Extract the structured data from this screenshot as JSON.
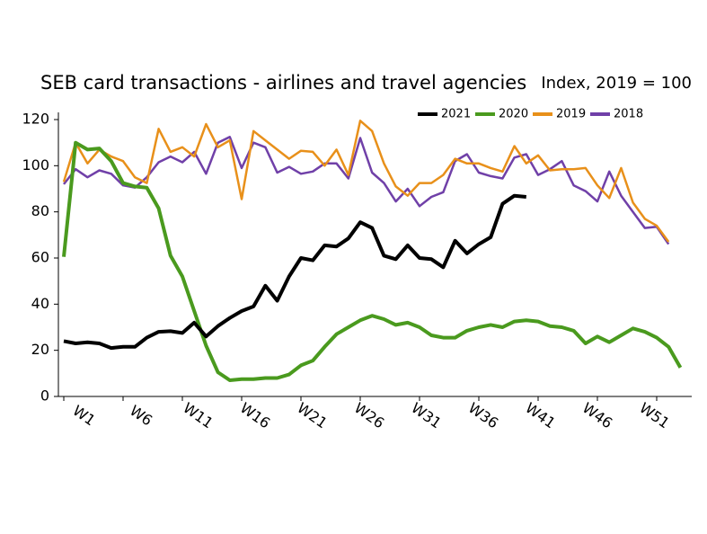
{
  "chart_data": {
    "type": "line",
    "title": "SEB card transactions - airlines and travel agencies",
    "subtitle": "Index, 2019 = 100",
    "categories": [
      "W1",
      null,
      null,
      null,
      null,
      "W6",
      null,
      null,
      null,
      null,
      "W11",
      null,
      null,
      null,
      null,
      "W16",
      null,
      null,
      null,
      null,
      "W21",
      null,
      null,
      null,
      null,
      "W26",
      null,
      null,
      null,
      null,
      "W31",
      null,
      null,
      null,
      null,
      "W36",
      null,
      null,
      null,
      null,
      "W41",
      null,
      null,
      null,
      null,
      "W46",
      null,
      null,
      null,
      null,
      "W51",
      null,
      null
    ],
    "ylim": [
      0,
      120
    ],
    "yticks": [
      0,
      20,
      40,
      60,
      80,
      100,
      120
    ],
    "legend": "top-right",
    "series": [
      {
        "name": "2021",
        "color": "#000000",
        "values": [
          24,
          23,
          23.5,
          23,
          21,
          21.5,
          21.5,
          25.5,
          28,
          28.3,
          27.5,
          32,
          26,
          30.5,
          34,
          37,
          39,
          48,
          41.5,
          52,
          60,
          59,
          65.5,
          65,
          68.5,
          75.5,
          73,
          61,
          59.5,
          65.5,
          60,
          59.5,
          56,
          67.5,
          62,
          66,
          69,
          83.5,
          87,
          86.5,
          null,
          null,
          null,
          null,
          null,
          null,
          null,
          null,
          null,
          null,
          null,
          null,
          null
        ]
      },
      {
        "name": "2020",
        "color": "#4a9a1e",
        "values": [
          60.5,
          110,
          107,
          107.5,
          102,
          92.5,
          91,
          90.5,
          81.5,
          61,
          52,
          37,
          22,
          10.5,
          7,
          7.5,
          7.5,
          8,
          8,
          9.5,
          13.5,
          15.5,
          21.5,
          27,
          30,
          33,
          35,
          33.5,
          31,
          32,
          30,
          26.5,
          25.5,
          25.5,
          28.5,
          30,
          31,
          30,
          32.5,
          33,
          32.5,
          30.5,
          30,
          28.5,
          23,
          26,
          23.5,
          26.5,
          29.5,
          28,
          25.5,
          21.5,
          12.5
        ]
      },
      {
        "name": "2019",
        "color": "#e8901a",
        "values": [
          93,
          110,
          101,
          107,
          104,
          102,
          95,
          92.5,
          116,
          106,
          108,
          104,
          118,
          108,
          111,
          85.5,
          115,
          111,
          107,
          103,
          106.5,
          106,
          100,
          107,
          96,
          119.5,
          115,
          101,
          91,
          87,
          92.5,
          92.5,
          96,
          103,
          101,
          101,
          99,
          97.5,
          108.5,
          101,
          104.5,
          98,
          98.5,
          98.5,
          99,
          91.5,
          86,
          99,
          84,
          77,
          74,
          67,
          null
        ]
      },
      {
        "name": "2018",
        "color": "#7040a8",
        "values": [
          92,
          98.5,
          95,
          98,
          96.5,
          91.5,
          90.5,
          95,
          101.5,
          104,
          101.5,
          106,
          96.5,
          110,
          112.5,
          99,
          110,
          108,
          97,
          99.5,
          96.5,
          97.5,
          101,
          101,
          94.5,
          112,
          97,
          92.5,
          84.5,
          90,
          82.5,
          86.5,
          88.5,
          102,
          105,
          97,
          95.5,
          94.5,
          103.5,
          105,
          96,
          98.5,
          102,
          91.5,
          89,
          84.5,
          97.5,
          87,
          80,
          73,
          73.5,
          66,
          null
        ]
      }
    ]
  }
}
